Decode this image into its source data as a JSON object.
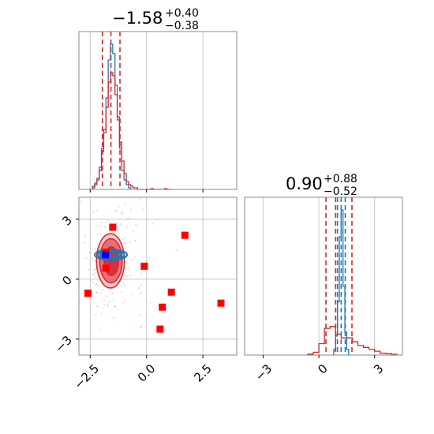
{
  "colors": {
    "blue": "#1f77b4",
    "red": "#d62728",
    "marker_red": "#ff0000",
    "marker_blue": "#0000ff",
    "grid": "#c8c8c8"
  },
  "chart_data": {
    "type": "corner",
    "parameters": [
      {
        "title_value": "−1.58",
        "title_plus": "+0.40",
        "title_minus": "−0.38",
        "range": [
          -3.0,
          4.0
        ],
        "ticks": [
          -2.5,
          0.0,
          2.5
        ],
        "tick_labels": [
          "−2.5",
          "0.0",
          "2.5"
        ],
        "quantile_lines": [
          -1.96,
          -1.58,
          -1.18
        ]
      },
      {
        "title_value": "0.90",
        "title_plus": "+0.88",
        "title_minus": "−0.52",
        "range": [
          -4.0,
          4.5
        ],
        "ticks": [
          -3,
          0,
          3
        ],
        "tick_labels": [
          "−3",
          "0",
          "3"
        ],
        "quantile_lines_red": [
          0.38,
          0.9,
          1.78
        ],
        "quantile_lines_blue": [
          1.0,
          1.2,
          1.42
        ]
      }
    ],
    "joint_y_range": [
      -3.8,
      4.1
    ],
    "joint_y_ticks": [
      -3,
      0,
      3
    ],
    "joint_y_tick_labels": [
      "−3",
      "0",
      "3"
    ],
    "hist1_blue": {
      "bin_edges": [
        -2.4,
        -2.3,
        -2.2,
        -2.1,
        -2.0,
        -1.9,
        -1.8,
        -1.7,
        -1.6,
        -1.5,
        -1.4,
        -1.3,
        -1.2,
        -1.1,
        -1.0,
        -0.9,
        -0.8,
        -0.7
      ],
      "counts": [
        0.02,
        0.04,
        0.07,
        0.14,
        0.26,
        0.38,
        0.58,
        0.82,
        0.92,
        0.86,
        0.66,
        0.44,
        0.26,
        0.12,
        0.06,
        0.03,
        0.01
      ]
    },
    "hist1_red": {
      "bin_edges": [
        -2.4,
        -2.3,
        -2.2,
        -2.1,
        -2.0,
        -1.9,
        -1.8,
        -1.7,
        -1.6,
        -1.5,
        -1.4,
        -1.3,
        -1.2,
        -1.1,
        -1.0,
        -0.9,
        -0.8,
        -0.7,
        -0.6,
        -0.5,
        -0.4,
        -0.3,
        -0.2,
        -0.1,
        0.0,
        0.1,
        0.2,
        0.3,
        0.4,
        0.5,
        0.6,
        0.7,
        0.8,
        0.9,
        1.0,
        1.1
      ],
      "counts": [
        0.01,
        0.03,
        0.06,
        0.12,
        0.24,
        0.36,
        0.52,
        0.68,
        0.74,
        0.72,
        0.6,
        0.46,
        0.3,
        0.18,
        0.1,
        0.05,
        0.03,
        0.02,
        0.01,
        0.01,
        0.0,
        0.0,
        0.0,
        0.0,
        0.0,
        0.0,
        0.005,
        0.0,
        0.0,
        0.0,
        0.0,
        0.0,
        0.005,
        0.0,
        0.0
      ]
    },
    "hist2_blue": {
      "bin_edges": [
        0.8,
        0.9,
        1.0,
        1.1,
        1.2,
        1.3,
        1.4,
        1.5,
        1.6
      ],
      "counts": [
        0.03,
        0.1,
        0.28,
        0.62,
        0.76,
        0.36,
        0.12,
        0.03
      ]
    },
    "hist2_red": {
      "bin_edges": [
        -0.6,
        -0.3,
        0.0,
        0.3,
        0.6,
        0.9,
        1.2,
        1.5,
        1.8,
        2.1,
        2.4,
        2.7,
        3.0,
        3.3,
        3.6,
        3.9,
        4.2
      ],
      "counts": [
        0.005,
        0.015,
        0.06,
        0.14,
        0.15,
        0.11,
        0.09,
        0.09,
        0.07,
        0.05,
        0.04,
        0.03,
        0.02,
        0.01,
        0.008,
        0.004
      ]
    },
    "red_contours": [
      {
        "level": 3,
        "cx": -1.6,
        "cy": 0.92,
        "rx": 0.62,
        "ry": 1.36
      },
      {
        "level": 2,
        "cx": -1.58,
        "cy": 0.92,
        "rx": 0.5,
        "ry": 1.1
      },
      {
        "level": 1,
        "cx": -1.56,
        "cy": 0.9,
        "rx": 0.32,
        "ry": 0.72
      }
    ],
    "blue_contours": [
      {
        "level": 3,
        "cx": -1.58,
        "cy": 1.22,
        "rx": 0.72,
        "ry": 0.26
      },
      {
        "level": 2,
        "cx": -1.58,
        "cy": 1.22,
        "rx": 0.6,
        "ry": 0.18
      },
      {
        "level": 1,
        "cx": -1.58,
        "cy": 1.22,
        "rx": 0.45,
        "ry": 0.11
      }
    ],
    "red_markers": [
      {
        "x": -1.5,
        "y": 2.6
      },
      {
        "x": -1.8,
        "y": 1.35
      },
      {
        "x": -1.8,
        "y": 0.55
      },
      {
        "x": -0.1,
        "y": 0.65
      },
      {
        "x": 1.7,
        "y": 2.2
      },
      {
        "x": -2.6,
        "y": -0.7
      },
      {
        "x": 1.1,
        "y": -0.65
      },
      {
        "x": 0.7,
        "y": -1.4
      },
      {
        "x": 0.6,
        "y": -2.5
      },
      {
        "x": 3.3,
        "y": -1.2
      }
    ],
    "blue_markers": [
      {
        "x": -1.82,
        "y": 1.22
      }
    ]
  }
}
